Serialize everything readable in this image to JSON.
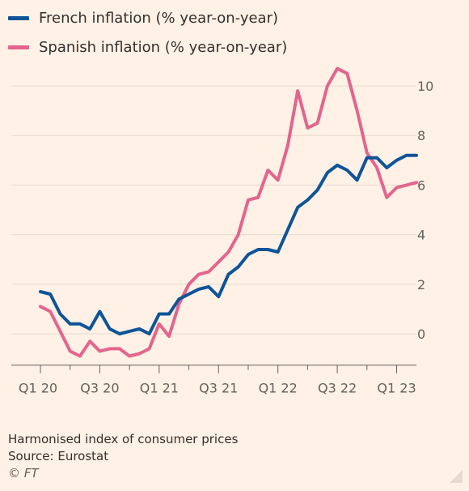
{
  "chart_data": {
    "type": "line",
    "title": "",
    "xlabel": "",
    "ylabel": "",
    "ylim": [
      -1,
      11
    ],
    "yticks": [
      0,
      2,
      4,
      6,
      8,
      10
    ],
    "x_tick_labels": [
      "Q1 20",
      "Q3 20",
      "Q1 21",
      "Q3 21",
      "Q1 22",
      "Q3 22",
      "Q1 23"
    ],
    "x": [
      "Jan 2020",
      "Feb 2020",
      "Mar 2020",
      "Apr 2020",
      "May 2020",
      "Jun 2020",
      "Jul 2020",
      "Aug 2020",
      "Sep 2020",
      "Oct 2020",
      "Nov 2020",
      "Dec 2020",
      "Jan 2021",
      "Feb 2021",
      "Mar 2021",
      "Apr 2021",
      "May 2021",
      "Jun 2021",
      "Jul 2021",
      "Aug 2021",
      "Sep 2021",
      "Oct 2021",
      "Nov 2021",
      "Dec 2021",
      "Jan 2022",
      "Feb 2022",
      "Mar 2022",
      "Apr 2022",
      "May 2022",
      "Jun 2022",
      "Jul 2022",
      "Aug 2022",
      "Sep 2022",
      "Oct 2022",
      "Nov 2022",
      "Dec 2022",
      "Jan 2023",
      "Feb 2023",
      "Mar 2023"
    ],
    "grid": true,
    "legend_position": "top-left",
    "series": [
      {
        "name": "French inflation (% year-on-year)",
        "color": "#0f5499",
        "values": [
          1.7,
          1.6,
          0.8,
          0.4,
          0.4,
          0.2,
          0.9,
          0.2,
          0.0,
          0.1,
          0.2,
          0.0,
          0.8,
          0.8,
          1.4,
          1.6,
          1.8,
          1.9,
          1.5,
          2.4,
          2.7,
          3.2,
          3.4,
          3.4,
          3.3,
          4.2,
          5.1,
          5.4,
          5.8,
          6.5,
          6.8,
          6.6,
          6.2,
          7.1,
          7.1,
          6.7,
          7.0,
          7.2,
          7.2
        ]
      },
      {
        "name": "Spanish inflation (% year-on-year)",
        "color": "#e3658d",
        "values": [
          1.1,
          0.9,
          0.1,
          -0.7,
          -0.9,
          -0.3,
          -0.7,
          -0.6,
          -0.6,
          -0.9,
          -0.8,
          -0.6,
          0.4,
          -0.1,
          1.2,
          2.0,
          2.4,
          2.5,
          2.9,
          3.3,
          4.0,
          5.4,
          5.5,
          6.6,
          6.2,
          7.6,
          9.8,
          8.3,
          8.5,
          10.0,
          10.7,
          10.5,
          9.0,
          7.3,
          6.7,
          5.5,
          5.9,
          6.0,
          6.1
        ]
      }
    ]
  },
  "footer": {
    "note": "Harmonised index of consumer prices",
    "source": "Source: Eurostat",
    "credit": "© FT"
  }
}
